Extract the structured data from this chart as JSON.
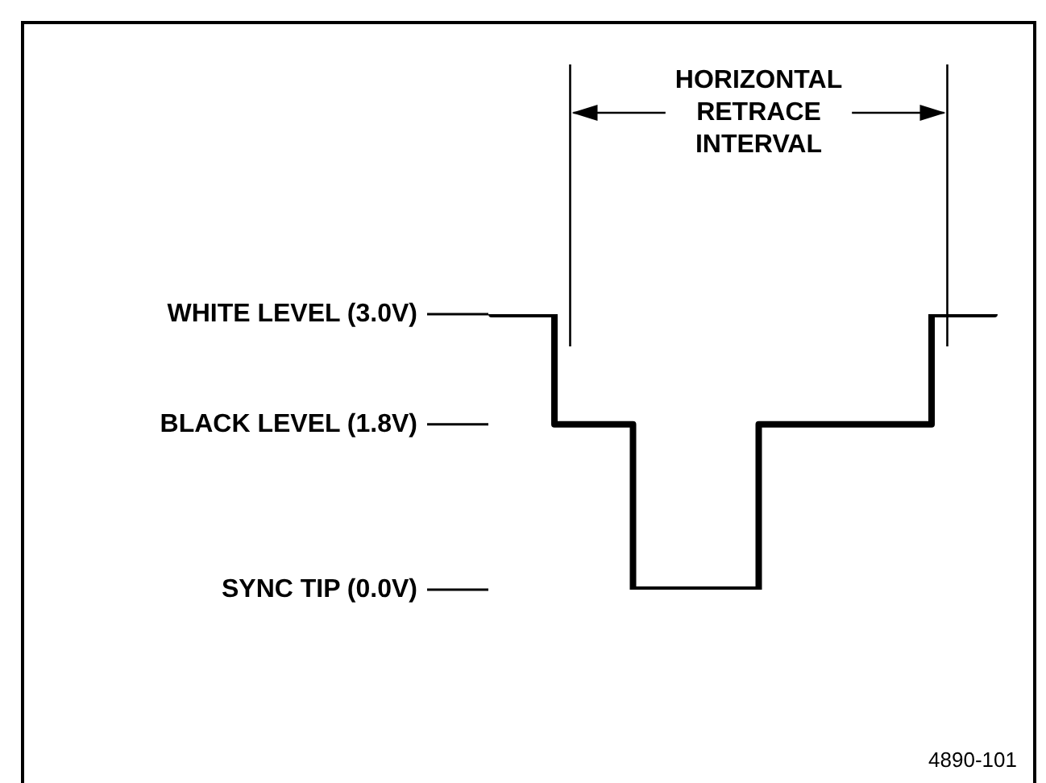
{
  "chart_data": {
    "type": "step",
    "categories": [
      null,
      null,
      null,
      null,
      null,
      null,
      null,
      null,
      null,
      null,
      null,
      null,
      null,
      null,
      null,
      null,
      null,
      null,
      null,
      null,
      null,
      null,
      null,
      null,
      null,
      null,
      null,
      null,
      null,
      null,
      null,
      null,
      null
    ],
    "series": [
      {
        "color": "#000000",
        "values": [
          3,
          3,
          3,
          3,
          3,
          1.8,
          1.8,
          1.8,
          1.8,
          1.8,
          0,
          0,
          0,
          0,
          0,
          0,
          0,
          0,
          1.8,
          1.8,
          1.8,
          1.8,
          1.8,
          1.8,
          1.8,
          1.8,
          1.8,
          1.8,
          1.8,
          3,
          3,
          3,
          3
        ]
      }
    ],
    "ylim": [
      0,
      3
    ],
    "yticks": [
      {
        "value": 3,
        "label": "WHITE LEVEL (3.0V)"
      },
      {
        "value": 1.8,
        "label": "BLACK LEVEL (1.8V)"
      },
      {
        "value": 0,
        "label": "SYNC TIP (0.0V)"
      }
    ],
    "annotations": [
      "HORIZONTAL RETRACE INTERVAL",
      "4890-101"
    ],
    "tick_labels": "y",
    "grid": false,
    "legend": false,
    "marker": "none",
    "line_style": "solid"
  }
}
